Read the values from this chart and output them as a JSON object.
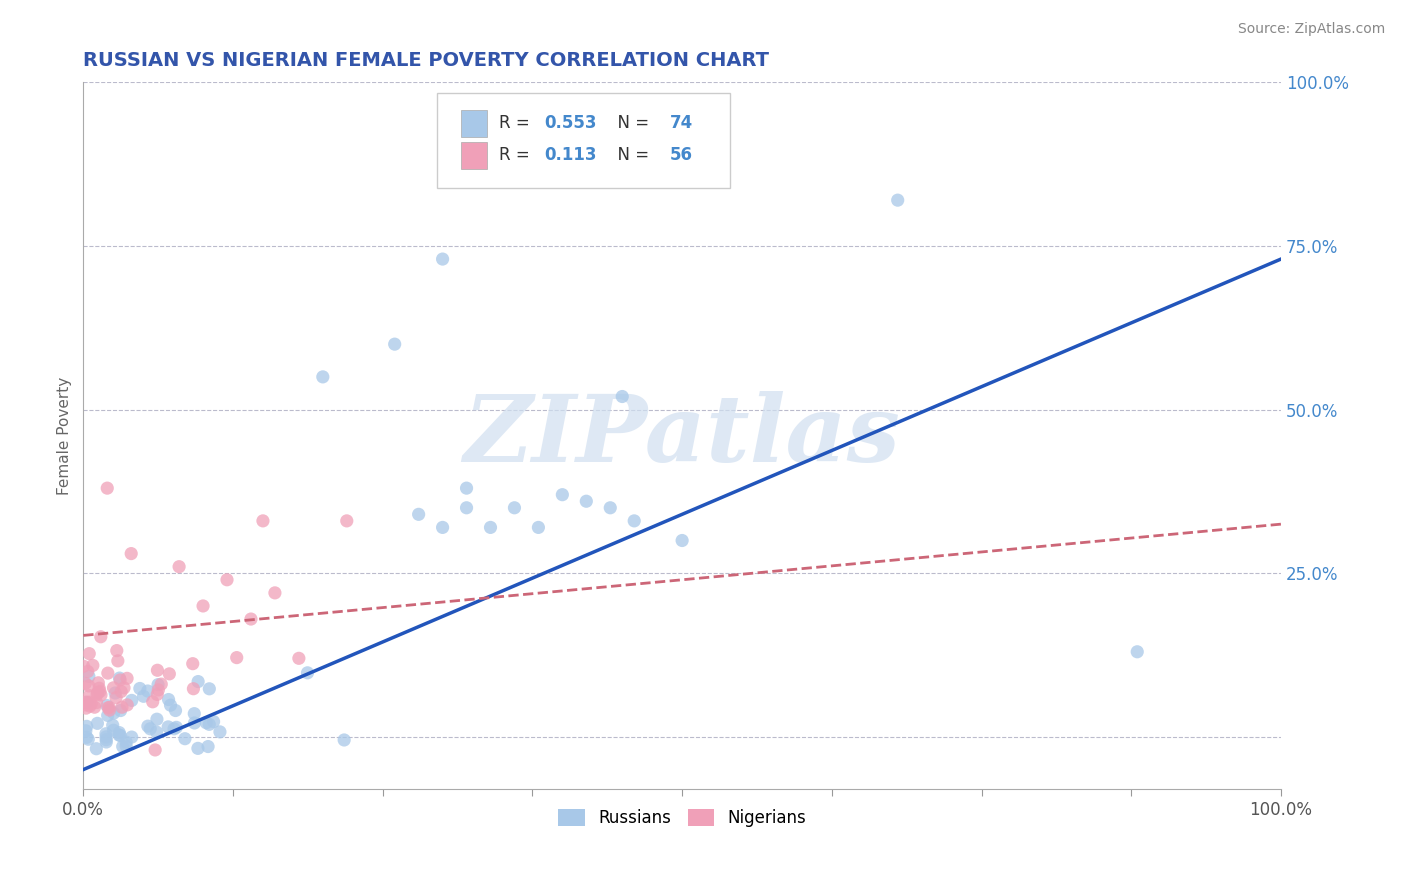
{
  "title": "RUSSIAN VS NIGERIAN FEMALE POVERTY CORRELATION CHART",
  "source": "Source: ZipAtlas.com",
  "ylabel": "Female Poverty",
  "xlim": [
    0,
    1
  ],
  "ylim": [
    -0.08,
    1.0
  ],
  "russian_color": "#a8c8e8",
  "nigerian_color": "#f0a0b8",
  "russian_line_color": "#2255bb",
  "nigerian_line_color": "#cc6677",
  "background_color": "#ffffff",
  "grid_color": "#bbbbcc",
  "title_color": "#3355aa",
  "watermark_color": "#d0dff0",
  "russians_label": "Russians",
  "nigerians_label": "Nigerians",
  "right_tick_color": "#4488cc"
}
